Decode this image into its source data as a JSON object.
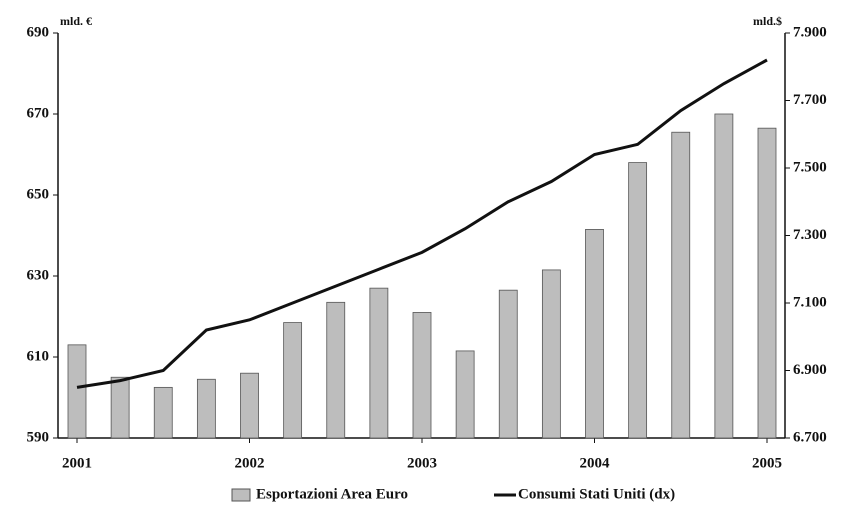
{
  "chart_data": {
    "type": "bar-line",
    "y_unit": "mld. €",
    "y2_unit": "mld.$",
    "categories": [
      "2001",
      null,
      null,
      null,
      "2002",
      null,
      null,
      null,
      "2003",
      null,
      null,
      null,
      "2004",
      null,
      null,
      null,
      "2005"
    ],
    "series": [
      {
        "name": "Esportazioni Area  Euro",
        "type": "bar",
        "color": "#bdbdbd",
        "values": [
          613,
          605,
          602.5,
          604.5,
          606,
          618.5,
          623.5,
          627,
          621,
          611.5,
          626.5,
          631.5,
          641.5,
          658,
          665.5,
          670,
          666.5
        ]
      },
      {
        "name": "Consumi Stati Uniti (dx)",
        "type": "line",
        "axis": "y2",
        "color": "#111111",
        "values": [
          6850,
          6870,
          6900,
          7020,
          7050,
          7100,
          7150,
          7200,
          7250,
          7320,
          7400,
          7460,
          7540,
          7570,
          7670,
          7750,
          7820
        ]
      }
    ],
    "ylim": [
      590,
      690
    ],
    "yticks": [
      590,
      610,
      630,
      650,
      670,
      690
    ],
    "y2lim": [
      6700,
      7900
    ],
    "y2ticks": [
      {
        "value": 6700,
        "label": "6.700"
      },
      {
        "value": 6900,
        "label": "6.900"
      },
      {
        "value": 7100,
        "label": "7.100"
      },
      {
        "value": 7300,
        "label": "7.300"
      },
      {
        "value": 7500,
        "label": "7.500"
      },
      {
        "value": 7700,
        "label": "7.700"
      },
      {
        "value": 7900,
        "label": "7.900"
      }
    ]
  }
}
